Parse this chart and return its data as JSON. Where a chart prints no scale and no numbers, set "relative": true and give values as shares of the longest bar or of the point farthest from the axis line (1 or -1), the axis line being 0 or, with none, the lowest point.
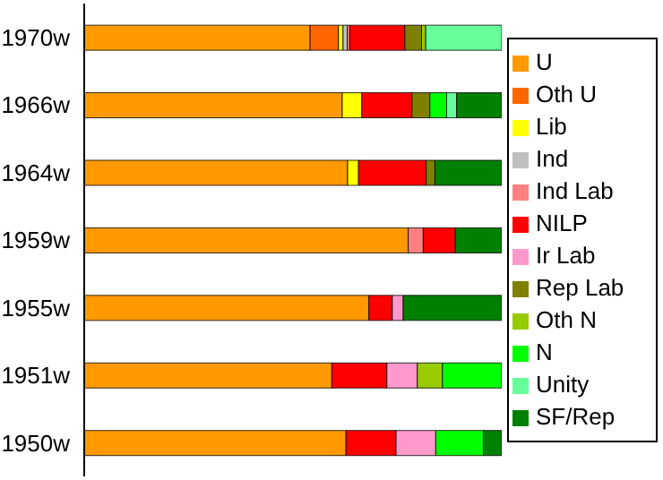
{
  "chart_data": {
    "type": "bar",
    "orientation": "horizontal",
    "stacked": true,
    "relative": true,
    "legend": "right",
    "grid": false,
    "categories": [
      "1970w",
      "1966w",
      "1964w",
      "1959w",
      "1955w",
      "1951w",
      "1950w"
    ],
    "series": [
      {
        "name": "U",
        "color": "#ff9900",
        "values": [
          0.541,
          0.618,
          0.631,
          0.776,
          0.682,
          0.593,
          0.627
        ]
      },
      {
        "name": "Oth U",
        "color": "#ff6600",
        "values": [
          0.068,
          null,
          null,
          null,
          null,
          null,
          null
        ]
      },
      {
        "name": "Lib",
        "color": "#ffff00",
        "values": [
          0.011,
          0.047,
          0.026,
          null,
          null,
          null,
          null
        ]
      },
      {
        "name": "Ind",
        "color": "#c0c0c0",
        "values": [
          0.01,
          null,
          null,
          null,
          null,
          null,
          null
        ]
      },
      {
        "name": "Ind Lab",
        "color": "#ff8080",
        "values": [
          0.006,
          null,
          null,
          0.036,
          null,
          null,
          null
        ]
      },
      {
        "name": "NILP",
        "color": "#ff0000",
        "values": [
          0.132,
          0.12,
          0.162,
          0.077,
          0.056,
          0.132,
          0.12
        ]
      },
      {
        "name": "Ir Lab",
        "color": "#ff99cc",
        "values": [
          null,
          null,
          null,
          null,
          0.026,
          0.073,
          0.095
        ]
      },
      {
        "name": "Rep Lab",
        "color": "#808000",
        "values": [
          0.04,
          0.043,
          0.021,
          null,
          null,
          null,
          null
        ]
      },
      {
        "name": "Oth N",
        "color": "#99cc00",
        "values": [
          0.01,
          null,
          null,
          null,
          null,
          0.06,
          null
        ]
      },
      {
        "name": "N",
        "color": "#00ff00",
        "values": [
          null,
          0.04,
          null,
          null,
          null,
          0.142,
          0.114
        ]
      },
      {
        "name": "Unity",
        "color": "#66ff99",
        "values": [
          0.182,
          0.024,
          null,
          null,
          null,
          null,
          null
        ]
      },
      {
        "name": "SF/Rep",
        "color": "#008000",
        "values": [
          null,
          0.108,
          0.16,
          0.111,
          0.236,
          null,
          0.044
        ]
      }
    ]
  }
}
